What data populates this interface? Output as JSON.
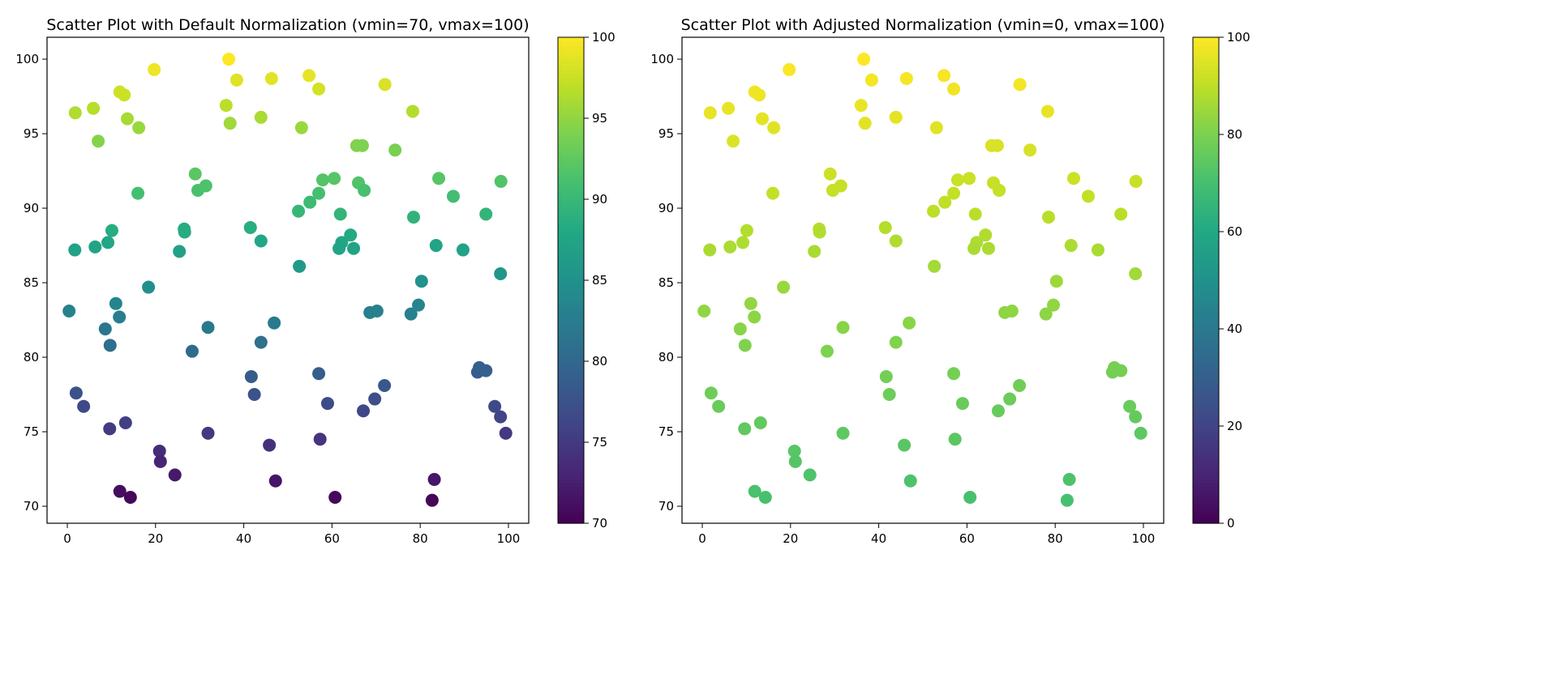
{
  "chart_data": [
    {
      "type": "scatter",
      "title": "Scatter Plot with Default Normalization (vmin=70, vmax=100)",
      "xlabel": "",
      "ylabel": "",
      "xlim": [
        -4.6,
        104.6
      ],
      "ylim": [
        68.86,
        101.47
      ],
      "xticks": [
        "0",
        "20",
        "40",
        "60",
        "80",
        "100"
      ],
      "yticks": [
        "70",
        "75",
        "80",
        "85",
        "90",
        "95",
        "100"
      ],
      "colormap": "viridis",
      "color_by": "y",
      "vmin": 70,
      "vmax": 100,
      "colorbar_ticks": [
        "70",
        "75",
        "80",
        "85",
        "90",
        "95",
        "100"
      ],
      "grid": false
    },
    {
      "type": "scatter",
      "title": "Scatter Plot with Adjusted Normalization (vmin=0, vmax=100)",
      "xlabel": "",
      "ylabel": "",
      "xlim": [
        -4.6,
        104.6
      ],
      "ylim": [
        68.86,
        101.47
      ],
      "xticks": [
        "0",
        "20",
        "40",
        "60",
        "80",
        "100"
      ],
      "yticks": [
        "70",
        "75",
        "80",
        "85",
        "90",
        "95",
        "100"
      ],
      "colormap": "viridis",
      "color_by": "y",
      "vmin": 0,
      "vmax": 100,
      "colorbar_ticks": [
        "0",
        "20",
        "40",
        "60",
        "80",
        "100"
      ],
      "grid": false
    }
  ],
  "points": [
    [
      19.7,
      99.3
    ],
    [
      36.6,
      100.0
    ],
    [
      38.4,
      98.6
    ],
    [
      46.3,
      98.7
    ],
    [
      54.8,
      98.9
    ],
    [
      57.0,
      98.0
    ],
    [
      72.0,
      98.3
    ],
    [
      11.9,
      97.8
    ],
    [
      12.9,
      97.6
    ],
    [
      1.8,
      96.4
    ],
    [
      5.9,
      96.7
    ],
    [
      36.0,
      96.9
    ],
    [
      36.9,
      95.7
    ],
    [
      43.9,
      96.1
    ],
    [
      53.1,
      95.4
    ],
    [
      78.3,
      96.5
    ],
    [
      13.6,
      96.0
    ],
    [
      16.2,
      95.4
    ],
    [
      7.0,
      94.5
    ],
    [
      65.6,
      94.2
    ],
    [
      66.9,
      94.2
    ],
    [
      74.3,
      93.9
    ],
    [
      29.0,
      92.3
    ],
    [
      29.6,
      91.2
    ],
    [
      31.4,
      91.5
    ],
    [
      16.0,
      91.0
    ],
    [
      57.9,
      91.9
    ],
    [
      60.5,
      92.0
    ],
    [
      57.0,
      91.0
    ],
    [
      55.0,
      90.4
    ],
    [
      52.4,
      89.8
    ],
    [
      66.0,
      91.7
    ],
    [
      67.3,
      91.2
    ],
    [
      84.2,
      92.0
    ],
    [
      98.3,
      91.8
    ],
    [
      87.5,
      90.8
    ],
    [
      94.9,
      89.6
    ],
    [
      61.9,
      89.6
    ],
    [
      78.5,
      89.4
    ],
    [
      10.1,
      88.5
    ],
    [
      26.5,
      88.6
    ],
    [
      26.6,
      88.4
    ],
    [
      41.5,
      88.7
    ],
    [
      43.9,
      87.8
    ],
    [
      9.2,
      87.7
    ],
    [
      1.7,
      87.2
    ],
    [
      6.3,
      87.4
    ],
    [
      25.4,
      87.1
    ],
    [
      64.2,
      88.2
    ],
    [
      62.2,
      87.7
    ],
    [
      61.6,
      87.3
    ],
    [
      64.9,
      87.3
    ],
    [
      83.6,
      87.5
    ],
    [
      89.7,
      87.2
    ],
    [
      52.6,
      86.1
    ],
    [
      98.2,
      85.6
    ],
    [
      80.3,
      85.1
    ],
    [
      18.4,
      84.7
    ],
    [
      0.4,
      83.1
    ],
    [
      11.0,
      83.6
    ],
    [
      11.8,
      82.7
    ],
    [
      8.6,
      81.9
    ],
    [
      31.9,
      82.0
    ],
    [
      46.9,
      82.3
    ],
    [
      68.6,
      83.0
    ],
    [
      70.2,
      83.1
    ],
    [
      77.9,
      82.9
    ],
    [
      79.6,
      83.5
    ],
    [
      9.7,
      80.8
    ],
    [
      28.3,
      80.4
    ],
    [
      43.9,
      81.0
    ],
    [
      41.7,
      78.7
    ],
    [
      57.0,
      78.9
    ],
    [
      93.4,
      79.3
    ],
    [
      93.0,
      79.0
    ],
    [
      94.9,
      79.1
    ],
    [
      2.0,
      77.6
    ],
    [
      3.7,
      76.7
    ],
    [
      42.4,
      77.5
    ],
    [
      59.0,
      76.9
    ],
    [
      71.9,
      78.1
    ],
    [
      69.7,
      77.2
    ],
    [
      67.1,
      76.4
    ],
    [
      96.9,
      76.7
    ],
    [
      98.2,
      76.0
    ],
    [
      99.4,
      74.9
    ],
    [
      9.6,
      75.2
    ],
    [
      13.2,
      75.6
    ],
    [
      31.9,
      74.9
    ],
    [
      45.8,
      74.1
    ],
    [
      57.3,
      74.5
    ],
    [
      20.9,
      73.7
    ],
    [
      21.1,
      73.0
    ],
    [
      24.4,
      72.1
    ],
    [
      11.9,
      71.0
    ],
    [
      14.3,
      70.6
    ],
    [
      47.2,
      71.7
    ],
    [
      60.7,
      70.6
    ],
    [
      82.7,
      70.4
    ],
    [
      83.2,
      71.8
    ]
  ]
}
